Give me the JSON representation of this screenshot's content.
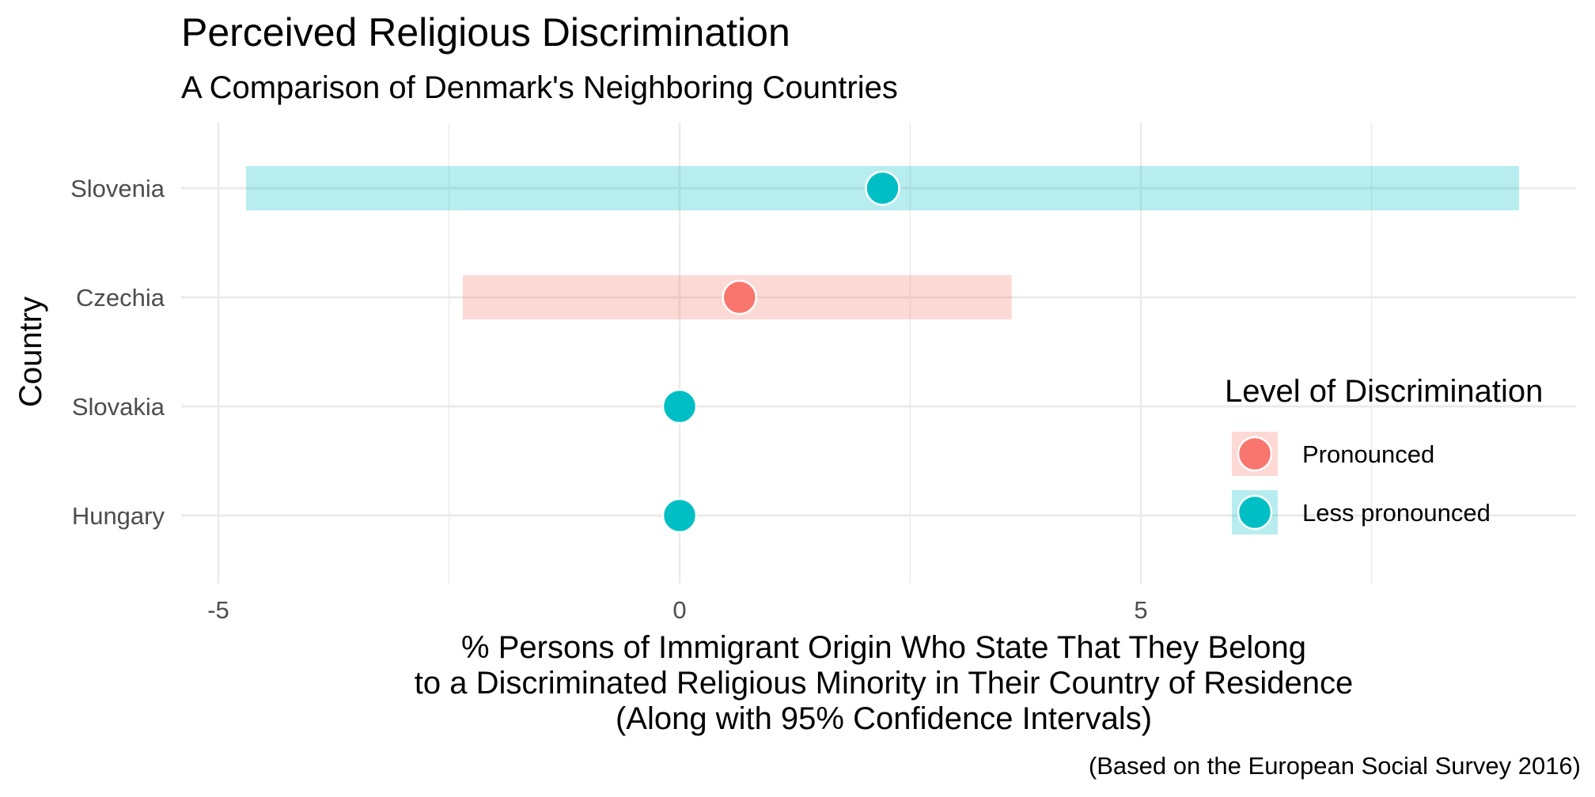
{
  "chart_data": {
    "type": "scatter",
    "title": "Perceived Religious Discrimination",
    "subtitle": "A Comparison of Denmark's Neighboring Countries",
    "xlabel_lines": [
      "% Persons of Immigrant Origin Who State That They Belong",
      "to a Discriminated Religious Minority in Their Country of Residence",
      "(Along with 95% Confidence Intervals)"
    ],
    "ylabel": "Country",
    "caption": "(Based on the European Social Survey 2016)",
    "xlim": [
      -5.0,
      9.6
    ],
    "x_ticks": [
      -5,
      0,
      5
    ],
    "x_tick_labels": [
      "-5",
      "0",
      "5"
    ],
    "grid": true,
    "legend": {
      "title": "Level of Discrimination",
      "placement": "right",
      "entries": [
        {
          "label": "Pronounced",
          "color": "#F8766D"
        },
        {
          "label": "Less pronounced",
          "color": "#00BFC4"
        }
      ]
    },
    "points": [
      {
        "country": "Slovenia",
        "value": 2.2,
        "ci_low": -4.7,
        "ci_high": 9.1,
        "level": "Less pronounced"
      },
      {
        "country": "Czechia",
        "value": 0.65,
        "ci_low": -2.35,
        "ci_high": 3.6,
        "level": "Pronounced"
      },
      {
        "country": "Slovakia",
        "value": 0.0,
        "ci_low": null,
        "ci_high": null,
        "level": "Less pronounced"
      },
      {
        "country": "Hungary",
        "value": 0.0,
        "ci_low": null,
        "ci_high": null,
        "level": "Less pronounced"
      }
    ]
  }
}
